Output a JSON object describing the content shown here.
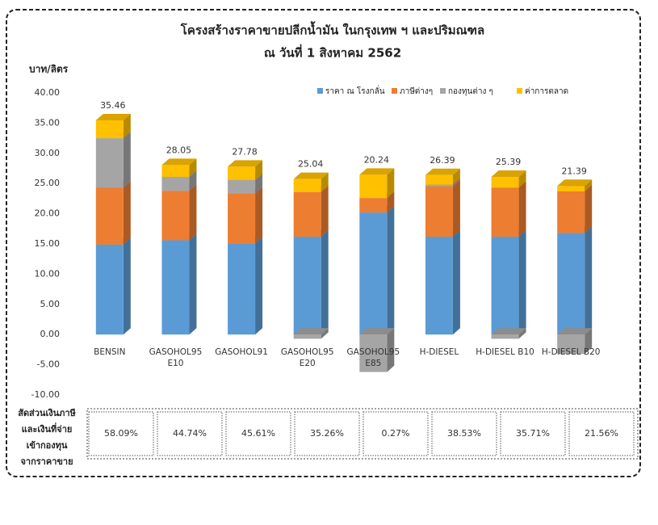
{
  "chart_data": {
    "type": "stacked_bar_3d",
    "title": "โครงสร้างราคาขายปลีกน้ำมัน ในกรุงเทพ ฯ และปริมณฑล",
    "subtitle": "ณ วันที่ 1 สิงหาคม 2562",
    "y_label": "บาท/ลิตร",
    "categories": [
      "BENSIN",
      "GASOHOL95\nE10",
      "GASOHOL91",
      "GASOHOL95\nE20",
      "GASOHOL95\nE85",
      "H-DIESEL",
      "H-DIESEL B10",
      "H-DIESEL B20"
    ],
    "series": [
      {
        "name": "ราคา ณ โรงกลั่น",
        "color": "#5b9bd5",
        "values": [
          14.9,
          15.6,
          15.1,
          16.2,
          20.2,
          16.2,
          16.2,
          16.8
        ]
      },
      {
        "name": "ภาษีต่างๆ",
        "color": "#ed7d31",
        "values": [
          9.4,
          8.2,
          8.2,
          7.4,
          2.4,
          8.3,
          8.1,
          6.9
        ]
      },
      {
        "name": "กองทุนต่าง ๆ",
        "color": "#a5a5a5",
        "values": [
          8.2,
          2.3,
          2.3,
          -0.7,
          -6.2,
          0.3,
          -0.7,
          -3.2
        ]
      },
      {
        "name": "ค่าการตลาด",
        "color": "#ffc000",
        "values": [
          2.96,
          1.95,
          2.18,
          2.14,
          3.84,
          1.59,
          1.79,
          0.89
        ]
      }
    ],
    "totals": [
      35.46,
      28.05,
      27.78,
      25.04,
      20.24,
      26.39,
      25.39,
      21.39
    ],
    "ylim": [
      -10,
      40
    ],
    "yticks": [
      {
        "value": -10,
        "label": "-10.00"
      },
      {
        "value": -5,
        "label": "-5.00"
      },
      {
        "value": 0,
        "label": "0.00"
      },
      {
        "value": 5,
        "label": "5.00"
      },
      {
        "value": 10,
        "label": "10.00"
      },
      {
        "value": 15,
        "label": "15.00"
      },
      {
        "value": 20,
        "label": "20.00"
      },
      {
        "value": 25,
        "label": "25.00"
      },
      {
        "value": 30,
        "label": "30.00"
      },
      {
        "value": 35,
        "label": "35.00"
      },
      {
        "value": 40,
        "label": "40.00"
      }
    ],
    "legend_position": "top-right",
    "table_label": [
      "สัดส่วนเงินภาษี",
      "และเงินที่จ่าย",
      "เข้ากองทุน",
      "จากราคาขาย"
    ],
    "ratios": [
      "58.09%",
      "44.74%",
      "45.61%",
      "35.26%",
      "0.27%",
      "38.53%",
      "35.71%",
      "21.56%"
    ]
  }
}
